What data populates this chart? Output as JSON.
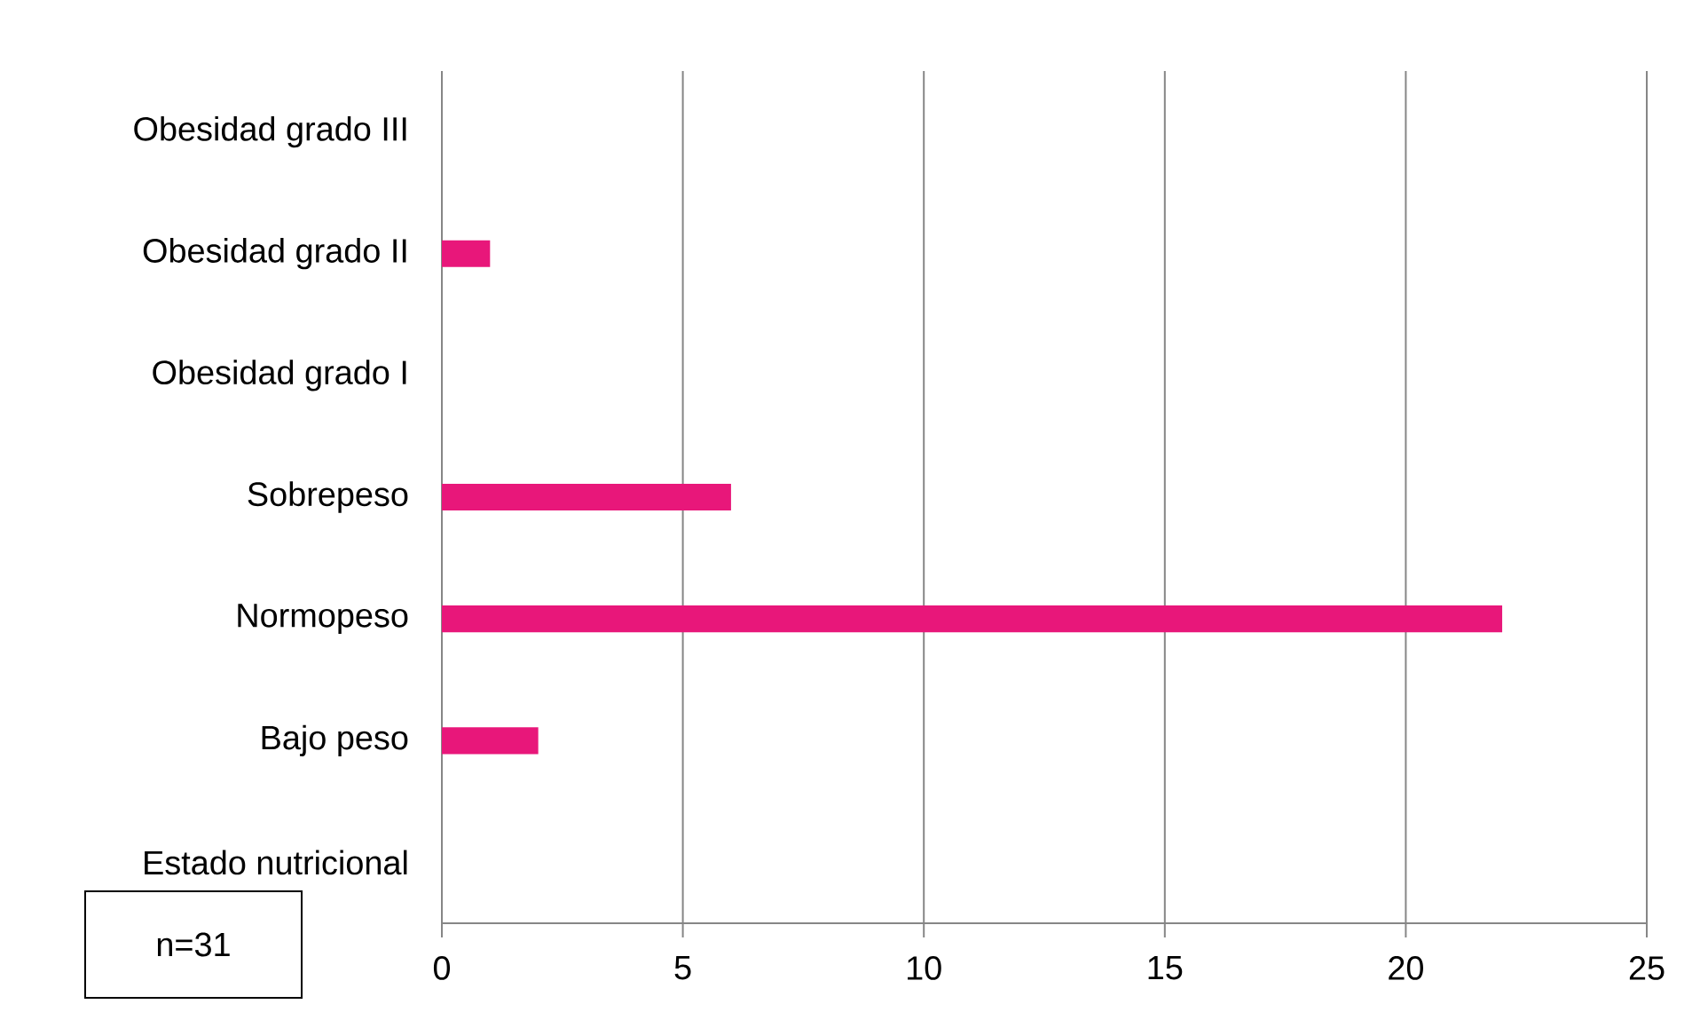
{
  "chart_data": {
    "type": "bar",
    "orientation": "horizontal",
    "categories": [
      "Obesidad grado III",
      "Obesidad grado II",
      "Obesidad grado I",
      "Sobrepeso",
      "Normopeso",
      "Bajo peso",
      "Estado nutricional"
    ],
    "values": [
      0,
      1,
      0,
      6,
      22,
      2,
      null
    ],
    "color": "#e8177a",
    "xlim": [
      0,
      25
    ],
    "xticks": [
      0,
      5,
      10,
      15,
      20,
      25
    ],
    "grid": "x",
    "annotations": [
      "n=31"
    ]
  }
}
